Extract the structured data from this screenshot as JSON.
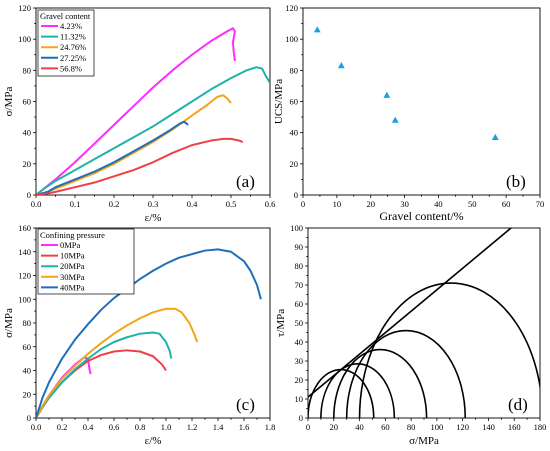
{
  "chart_data": [
    {
      "panel_label": "(a)",
      "type": "line",
      "xlabel": "ε/%",
      "ylabel": "σ/MPa",
      "xlim": [
        0,
        0.6
      ],
      "ylim": [
        0,
        120
      ],
      "xticks": [
        "0.0",
        "0.1",
        "0.2",
        "0.3",
        "0.4",
        "0.5",
        "0.6"
      ],
      "yticks": [
        "0",
        "20",
        "40",
        "60",
        "80",
        "100",
        "120"
      ],
      "legend_title": "Gravel content",
      "legend_position": "top-left",
      "series": [
        {
          "name": "4.23%",
          "color": "#ff2bff",
          "points": [
            [
              0,
              0
            ],
            [
              0.02,
              4
            ],
            [
              0.05,
              10
            ],
            [
              0.1,
              21
            ],
            [
              0.15,
              33
            ],
            [
              0.2,
              45
            ],
            [
              0.25,
              57
            ],
            [
              0.3,
              69
            ],
            [
              0.35,
              80
            ],
            [
              0.4,
              90
            ],
            [
              0.45,
              99
            ],
            [
              0.49,
              105
            ],
            [
              0.505,
              107
            ],
            [
              0.51,
              105
            ],
            [
              0.505,
              98
            ],
            [
              0.507,
              92
            ],
            [
              0.51,
              86
            ]
          ]
        },
        {
          "name": "11.32%",
          "color": "#1fb3a8",
          "points": [
            [
              0,
              0
            ],
            [
              0.02,
              4
            ],
            [
              0.05,
              9
            ],
            [
              0.1,
              16
            ],
            [
              0.15,
              23
            ],
            [
              0.2,
              30
            ],
            [
              0.25,
              37
            ],
            [
              0.3,
              44
            ],
            [
              0.35,
              52
            ],
            [
              0.4,
              60
            ],
            [
              0.45,
              68
            ],
            [
              0.5,
              75
            ],
            [
              0.54,
              80
            ],
            [
              0.565,
              82
            ],
            [
              0.58,
              81
            ],
            [
              0.59,
              76
            ],
            [
              0.6,
              72
            ]
          ]
        },
        {
          "name": "24.76%",
          "color": "#f2a51c",
          "points": [
            [
              0,
              0
            ],
            [
              0.03,
              2
            ],
            [
              0.05,
              4
            ],
            [
              0.1,
              9
            ],
            [
              0.15,
              14
            ],
            [
              0.2,
              20
            ],
            [
              0.25,
              27
            ],
            [
              0.3,
              34
            ],
            [
              0.35,
              42
            ],
            [
              0.4,
              51
            ],
            [
              0.44,
              58
            ],
            [
              0.465,
              63
            ],
            [
              0.48,
              64
            ],
            [
              0.49,
              62
            ],
            [
              0.5,
              59
            ]
          ]
        },
        {
          "name": "27.25%",
          "color": "#1f6fb8",
          "points": [
            [
              0,
              0
            ],
            [
              0.03,
              2
            ],
            [
              0.05,
              5
            ],
            [
              0.1,
              10
            ],
            [
              0.15,
              15
            ],
            [
              0.2,
              21
            ],
            [
              0.25,
              28
            ],
            [
              0.3,
              35
            ],
            [
              0.34,
              41
            ],
            [
              0.37,
              46
            ],
            [
              0.38,
              47
            ],
            [
              0.385,
              46
            ],
            [
              0.39,
              45
            ]
          ]
        },
        {
          "name": "56.8%",
          "color": "#ef3f4a",
          "points": [
            [
              0,
              0
            ],
            [
              0.03,
              1
            ],
            [
              0.05,
              2
            ],
            [
              0.1,
              5
            ],
            [
              0.15,
              8
            ],
            [
              0.2,
              12
            ],
            [
              0.25,
              16
            ],
            [
              0.3,
              21
            ],
            [
              0.35,
              27
            ],
            [
              0.4,
              32
            ],
            [
              0.45,
              35
            ],
            [
              0.48,
              36
            ],
            [
              0.5,
              36
            ],
            [
              0.52,
              35
            ],
            [
              0.53,
              34
            ]
          ]
        }
      ]
    },
    {
      "panel_label": "(b)",
      "type": "scatter",
      "xlabel": "Gravel content/%",
      "ylabel": "UCS/MPa",
      "xlim": [
        0,
        70
      ],
      "ylim": [
        0,
        120
      ],
      "xticks": [
        "0",
        "10",
        "20",
        "30",
        "40",
        "50",
        "60",
        "70"
      ],
      "yticks": [
        "0",
        "20",
        "40",
        "60",
        "80",
        "100",
        "120"
      ],
      "marker_color": "#1e9ee6",
      "points": [
        [
          4.23,
          106
        ],
        [
          11.32,
          83
        ],
        [
          24.76,
          64
        ],
        [
          27.25,
          48
        ],
        [
          56.8,
          37
        ]
      ]
    },
    {
      "panel_label": "(c)",
      "type": "line",
      "xlabel": "ε/%",
      "ylabel": "σ/MPa",
      "xlim": [
        0,
        1.8
      ],
      "ylim": [
        0,
        160
      ],
      "xticks": [
        "0.0",
        "0.2",
        "0.4",
        "0.6",
        "0.8",
        "1.0",
        "1.2",
        "1.4",
        "1.6",
        "1.8"
      ],
      "yticks": [
        "0",
        "20",
        "40",
        "60",
        "80",
        "100",
        "120",
        "140",
        "160"
      ],
      "legend_title": "Confining pressure",
      "legend_position": "top-left",
      "series": [
        {
          "name": "0MPa",
          "color": "#ff2bff",
          "points": [
            [
              0,
              0
            ],
            [
              0.05,
              10
            ],
            [
              0.1,
              19
            ],
            [
              0.2,
              34
            ],
            [
              0.3,
              45
            ],
            [
              0.37,
              51
            ],
            [
              0.4,
              50
            ],
            [
              0.41,
              42
            ],
            [
              0.42,
              37
            ]
          ]
        },
        {
          "name": "10MPa",
          "color": "#ef3f4a",
          "points": [
            [
              0,
              0
            ],
            [
              0.05,
              9
            ],
            [
              0.1,
              17
            ],
            [
              0.2,
              30
            ],
            [
              0.3,
              40
            ],
            [
              0.4,
              48
            ],
            [
              0.5,
              53
            ],
            [
              0.6,
              56
            ],
            [
              0.7,
              57
            ],
            [
              0.8,
              56
            ],
            [
              0.9,
              52
            ],
            [
              0.97,
              45
            ],
            [
              1.0,
              40
            ]
          ]
        },
        {
          "name": "20MPa",
          "color": "#1fb3a8",
          "points": [
            [
              0,
              0
            ],
            [
              0.05,
              9
            ],
            [
              0.1,
              17
            ],
            [
              0.2,
              30
            ],
            [
              0.3,
              41
            ],
            [
              0.4,
              50
            ],
            [
              0.5,
              58
            ],
            [
              0.6,
              64
            ],
            [
              0.7,
              68
            ],
            [
              0.8,
              71
            ],
            [
              0.9,
              72
            ],
            [
              0.95,
              71
            ],
            [
              1.0,
              64
            ],
            [
              1.03,
              56
            ],
            [
              1.04,
              50
            ]
          ]
        },
        {
          "name": "30MPa",
          "color": "#f2a51c",
          "points": [
            [
              0,
              0
            ],
            [
              0.05,
              10
            ],
            [
              0.1,
              19
            ],
            [
              0.2,
              33
            ],
            [
              0.3,
              44
            ],
            [
              0.4,
              54
            ],
            [
              0.5,
              63
            ],
            [
              0.6,
              71
            ],
            [
              0.7,
              78
            ],
            [
              0.8,
              84
            ],
            [
              0.9,
              89
            ],
            [
              1.0,
              92
            ],
            [
              1.07,
              92
            ],
            [
              1.12,
              89
            ],
            [
              1.18,
              80
            ],
            [
              1.22,
              70
            ],
            [
              1.24,
              64
            ]
          ]
        },
        {
          "name": "40MPa",
          "color": "#1f6fb8",
          "points": [
            [
              0,
              0
            ],
            [
              0.05,
              17
            ],
            [
              0.1,
              30
            ],
            [
              0.2,
              50
            ],
            [
              0.3,
              66
            ],
            [
              0.4,
              79
            ],
            [
              0.5,
              91
            ],
            [
              0.6,
              101
            ],
            [
              0.7,
              109
            ],
            [
              0.8,
              117
            ],
            [
              0.9,
              124
            ],
            [
              1.0,
              130
            ],
            [
              1.1,
              135
            ],
            [
              1.2,
              138
            ],
            [
              1.3,
              141
            ],
            [
              1.4,
              142
            ],
            [
              1.5,
              140
            ],
            [
              1.6,
              132
            ],
            [
              1.65,
              124
            ],
            [
              1.7,
              112
            ],
            [
              1.73,
              100
            ]
          ]
        }
      ]
    },
    {
      "panel_label": "(d)",
      "type": "line",
      "subtype": "mohr-circles",
      "xlabel": "σ/MPa",
      "ylabel": "τ/MPa",
      "xlim": [
        0,
        180
      ],
      "ylim": [
        0,
        100
      ],
      "xticks": [
        "0",
        "20",
        "40",
        "60",
        "80",
        "100",
        "120",
        "140",
        "160",
        "180"
      ],
      "yticks": [
        "0",
        "10",
        "20",
        "30",
        "40",
        "50",
        "60",
        "70",
        "80",
        "90",
        "100"
      ],
      "circles": [
        {
          "sigma3": 0,
          "sigma1": 51
        },
        {
          "sigma3": 10,
          "sigma1": 67
        },
        {
          "sigma3": 20,
          "sigma1": 92
        },
        {
          "sigma3": 30,
          "sigma1": 122
        },
        {
          "sigma3": 40,
          "sigma1": 182
        }
      ],
      "envelope": {
        "intercept": 11,
        "slope": 0.565
      }
    }
  ]
}
